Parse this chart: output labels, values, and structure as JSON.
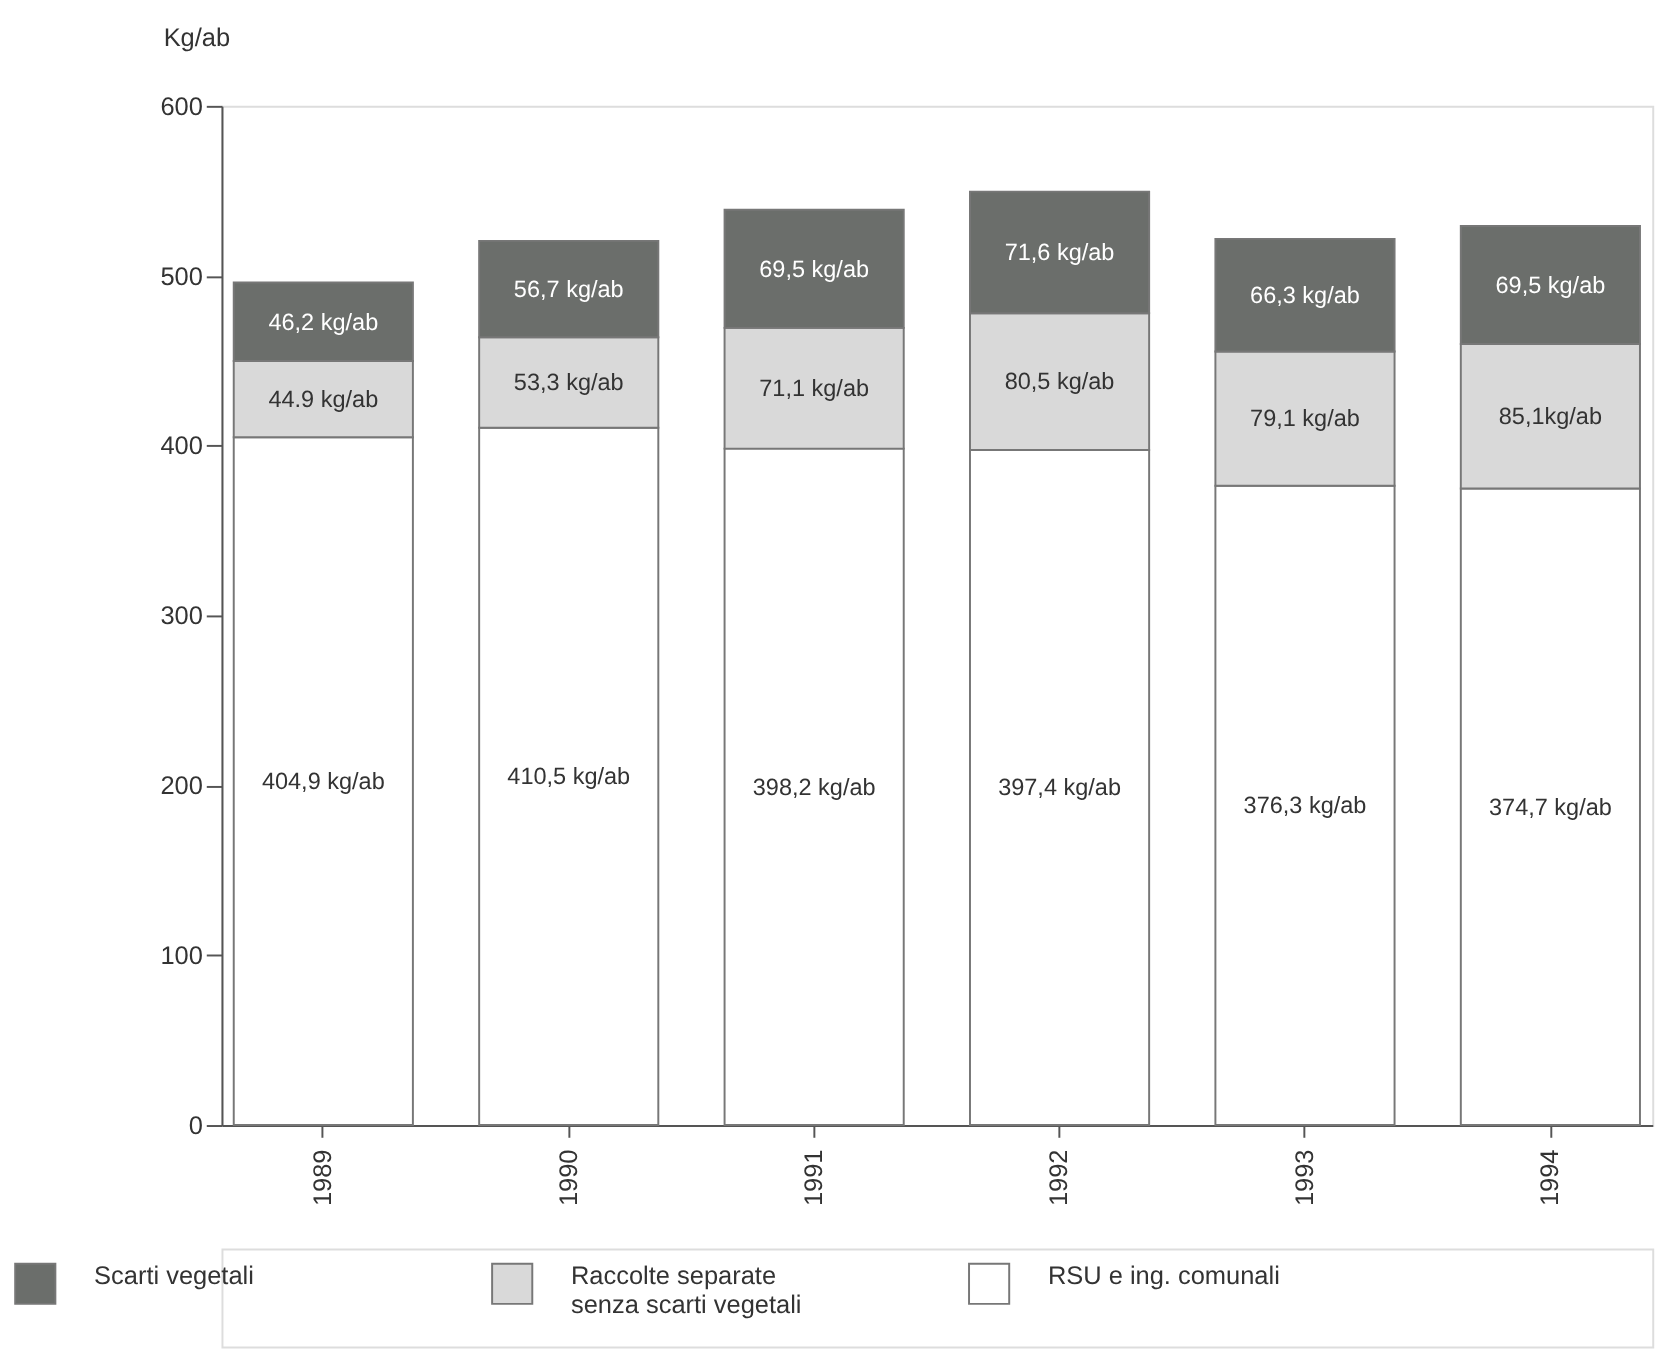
{
  "chart_data": {
    "type": "bar",
    "stacked": true,
    "ylabel": "Kg/ab",
    "categories": [
      "1989",
      "1990",
      "1991",
      "1992",
      "1993",
      "1994"
    ],
    "series": [
      {
        "name": "RSU e ing. comunali",
        "color": "#ffffff",
        "values": [
          404.9,
          410.5,
          398.2,
          397.4,
          376.3,
          374.7
        ],
        "value_labels": [
          "404,9 kg/ab",
          "410,5 kg/ab",
          "398,2 kg/ab",
          "397,4 kg/ab",
          "376,3 kg/ab",
          "374,7 kg/ab"
        ]
      },
      {
        "name": "Raccolte separate\nsenza scarti vegetali",
        "color": "#d9d9d9",
        "values": [
          44.9,
          53.3,
          71.1,
          80.5,
          79.1,
          85.1
        ],
        "value_labels": [
          "44.9 kg/ab",
          "53,3 kg/ab",
          "71,1 kg/ab",
          "80,5 kg/ab",
          "79,1 kg/ab",
          "85,1kg/ab"
        ]
      },
      {
        "name": "Scarti vegetali",
        "color": "#6b6e6b",
        "values": [
          46.2,
          56.7,
          69.5,
          71.6,
          66.3,
          69.5
        ],
        "value_labels": [
          "46,2 kg/ab",
          "56,7 kg/ab",
          "69,5 kg/ab",
          "71,6 kg/ab",
          "66,3 kg/ab",
          "69,5 kg/ab"
        ]
      }
    ],
    "ylim": [
      0,
      600
    ],
    "yticks": [
      0,
      100,
      200,
      300,
      400,
      500,
      600
    ],
    "grid": false,
    "legend": "bottom"
  }
}
